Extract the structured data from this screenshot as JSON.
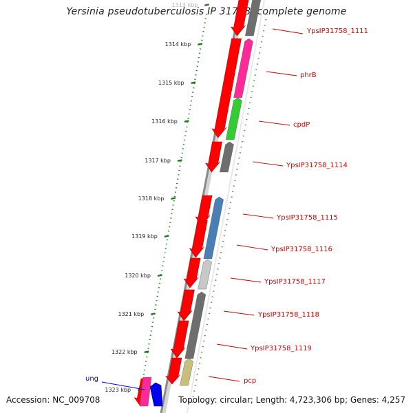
{
  "title": "Yersinia pseudotuberculosis IP 31758, complete genome",
  "accession": "Accession: NC_009708",
  "summary": "Topology: circular; Length: 4,723,306 bp; Genes: 4,257",
  "colors": {
    "cds_forward": "#ff0000",
    "backbone": "#808080",
    "tick": "#1a7a1a",
    "gene_label": "#cc0000",
    "ung_label": "#0000cc"
  },
  "ticks": [
    "1313 kbp",
    "1314 kbp",
    "1315 kbp",
    "1316 kbp",
    "1317 kbp",
    "1318 kbp",
    "1319 kbp",
    "1320 kbp",
    "1321 kbp",
    "1322 kbp",
    "1323 kbp"
  ],
  "genes": [
    {
      "name": "YpsIP31758_1111",
      "cog_color": "#6e6e6e"
    },
    {
      "name": "phrB",
      "cog_color": "#ff2a9a"
    },
    {
      "name": "cpdP",
      "cog_color": "#33cc33"
    },
    {
      "name": "YpsIP31758_1114",
      "cog_color": "#6e6e6e"
    },
    {
      "name": "YpsIP31758_1115",
      "cog_color": "#4a7fb5"
    },
    {
      "name": "YpsIP31758_1116",
      "cog_color": "#4a7fb5"
    },
    {
      "name": "YpsIP31758_1117",
      "cog_color": "#c8c8c8"
    },
    {
      "name": "YpsIP31758_1118",
      "cog_color": "#6e6e6e"
    },
    {
      "name": "YpsIP31758_1119",
      "cog_color": "#6e6e6e"
    },
    {
      "name": "pcp",
      "cog_color": "#c8bf7a"
    },
    {
      "name": "ung",
      "cog_color": "#ff2a9a"
    }
  ]
}
